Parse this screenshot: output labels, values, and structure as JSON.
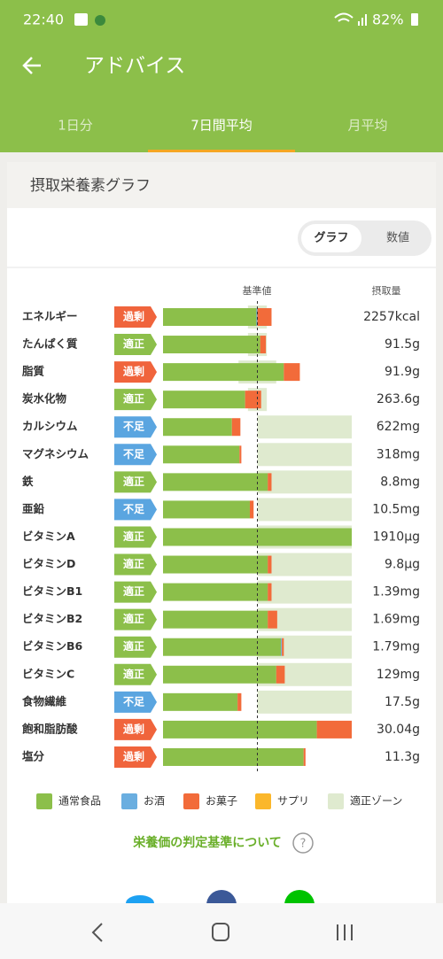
{
  "status_bar": {
    "time": "22:40",
    "battery": "82%"
  },
  "header": {
    "title": "アドバイス"
  },
  "tabs": {
    "items": [
      "1日分",
      "7日間平均",
      "月平均"
    ],
    "selected": 1
  },
  "card": {
    "title": "摂取栄養素グラフ",
    "toggle": [
      "グラフ",
      "数値"
    ]
  },
  "chart_data": {
    "type": "stacked-bar",
    "reference_label": "基準値",
    "amount_label": "摂取量",
    "xlim": [
      0,
      200
    ],
    "reference": 100,
    "categories": [
      "エネルギー",
      "たんぱく質",
      "脂質",
      "炭水化物",
      "カルシウム",
      "マグネシウム",
      "鉄",
      "亜鉛",
      "ビタミンA",
      "ビタミンD",
      "ビタミンB1",
      "ビタミンB2",
      "ビタミンB6",
      "ビタミンC",
      "食物繊維",
      "飽和脂肪酸",
      "塩分"
    ],
    "judgments": [
      "過剰",
      "適正",
      "過剰",
      "適正",
      "不足",
      "不足",
      "適正",
      "不足",
      "適正",
      "適正",
      "適正",
      "適正",
      "適正",
      "適正",
      "不足",
      "過剰",
      "過剰"
    ],
    "judgment_colors": {
      "過剰": "#f0643c",
      "適正": "#8cbf4a",
      "不足": "#5aa5e0"
    },
    "series": [
      {
        "name": "通常食品",
        "color": "#8cbf4a",
        "values": [
          99,
          103,
          128,
          87,
          73,
          81,
          111,
          92,
          200,
          111,
          111,
          111,
          125,
          120,
          79,
          163,
          149
        ]
      },
      {
        "name": "お酒",
        "color": "#6aaee0",
        "values": [
          1,
          0,
          0,
          0,
          0,
          0,
          0,
          0,
          0,
          0,
          0,
          0,
          1,
          0,
          0,
          0,
          0
        ]
      },
      {
        "name": "お菓子",
        "color": "#f26b3a",
        "values": [
          15,
          6,
          17,
          17,
          9,
          2,
          4,
          4,
          0,
          4,
          4,
          10,
          2,
          9,
          4,
          37,
          2
        ]
      },
      {
        "name": "サプリ",
        "color": "#fbb72b",
        "values": [
          0,
          0,
          0,
          0,
          0,
          0,
          0,
          0,
          0,
          0,
          0,
          0,
          0,
          0,
          0,
          0,
          0
        ]
      }
    ],
    "zone": {
      "name": "適正ゾーン",
      "color": "#dfeacf",
      "ranges": [
        [
          90,
          110
        ],
        [
          90,
          110
        ],
        [
          80,
          120
        ],
        [
          90,
          110
        ],
        [
          100,
          200
        ],
        [
          100,
          200
        ],
        [
          100,
          200
        ],
        [
          100,
          200
        ],
        [
          100,
          200
        ],
        [
          100,
          200
        ],
        [
          100,
          200
        ],
        [
          100,
          200
        ],
        [
          100,
          200
        ],
        [
          100,
          200
        ],
        [
          100,
          200
        ],
        null,
        null
      ]
    },
    "amounts": [
      "2257kcal",
      "91.5g",
      "91.9g",
      "263.6g",
      "622mg",
      "318mg",
      "8.8mg",
      "10.5mg",
      "1910μg",
      "9.8μg",
      "1.39mg",
      "1.69mg",
      "1.79mg",
      "129mg",
      "17.5g",
      "30.04g",
      "11.3g"
    ]
  },
  "link": "栄養価の判定基準について"
}
